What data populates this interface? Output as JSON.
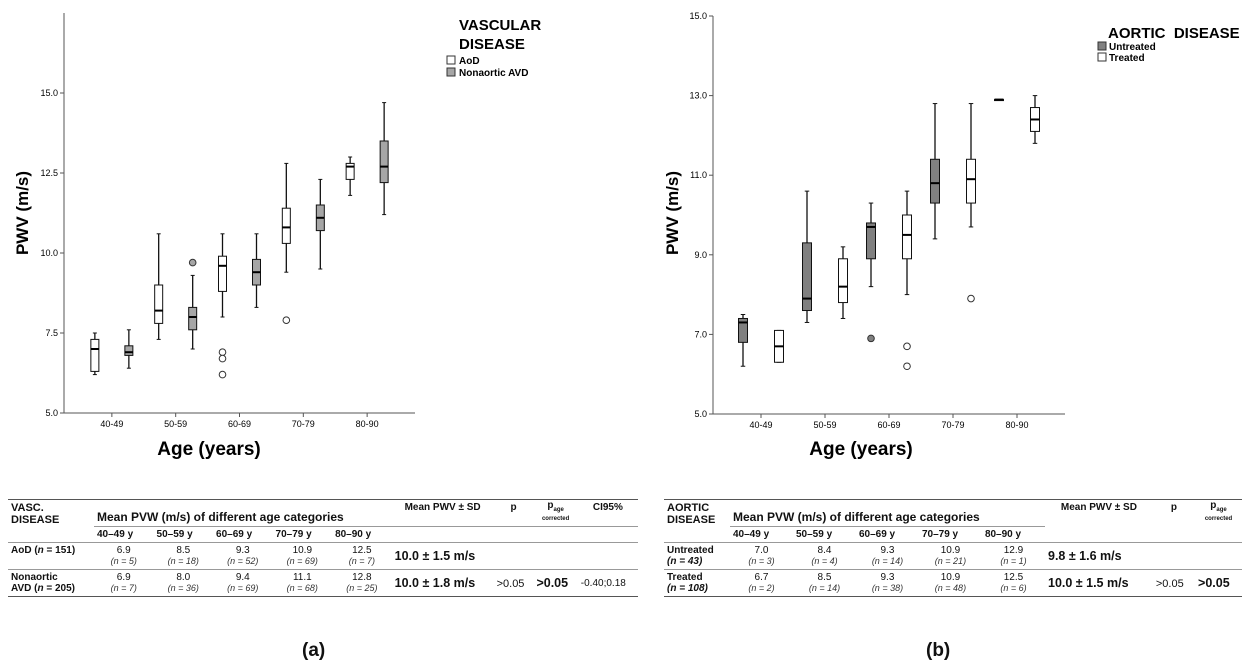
{
  "chart_data": [
    {
      "type": "boxplot",
      "panel": "(a)",
      "xlabel": "Age (years)",
      "ylabel": "PWV (m/s)",
      "ylim": [
        5.0,
        17.5
      ],
      "yticks": [
        "5.0",
        "7.5",
        "10.0",
        "12.5",
        "15.0"
      ],
      "categories": [
        "40-49",
        "50-59",
        "60-69",
        "70-79",
        "80-90"
      ],
      "legend_title": "VASCULAR DISEASE",
      "legend_title_lines": [
        "VASCULAR",
        "DISEASE"
      ],
      "series": [
        {
          "name": "AoD",
          "color": "#ffffff",
          "boxes": [
            {
              "min": 6.2,
              "q1": 6.3,
              "median": 7.0,
              "q3": 7.3,
              "max": 7.5,
              "outliers": []
            },
            {
              "min": 7.3,
              "q1": 7.8,
              "median": 8.2,
              "q3": 9.0,
              "max": 10.6,
              "outliers": []
            },
            {
              "min": 8.0,
              "q1": 8.8,
              "median": 9.6,
              "q3": 9.9,
              "max": 10.6,
              "outliers": [
                6.9,
                6.7,
                6.2
              ]
            },
            {
              "min": 9.4,
              "q1": 10.3,
              "median": 10.8,
              "q3": 11.4,
              "max": 12.8,
              "outliers": [
                7.9
              ]
            },
            {
              "min": 11.8,
              "q1": 12.3,
              "median": 12.7,
              "q3": 12.8,
              "max": 13.0,
              "outliers": []
            }
          ]
        },
        {
          "name": "Nonaortic AVD",
          "color": "#a6a6a6",
          "boxes": [
            {
              "min": 6.4,
              "q1": 6.8,
              "median": 6.9,
              "q3": 7.1,
              "max": 7.6,
              "outliers": []
            },
            {
              "min": 7.0,
              "q1": 7.6,
              "median": 8.0,
              "q3": 8.3,
              "max": 9.3,
              "outliers": [
                9.7
              ]
            },
            {
              "min": 8.3,
              "q1": 9.0,
              "median": 9.4,
              "q3": 9.8,
              "max": 10.6,
              "outliers": []
            },
            {
              "min": 9.5,
              "q1": 10.7,
              "median": 11.1,
              "q3": 11.5,
              "max": 12.3,
              "outliers": []
            },
            {
              "min": 11.2,
              "q1": 12.2,
              "median": 12.7,
              "q3": 13.5,
              "max": 14.7,
              "outliers": []
            }
          ]
        }
      ]
    },
    {
      "type": "boxplot",
      "panel": "(b)",
      "xlabel": "Age (years)",
      "ylabel": "PWV (m/s)",
      "ylim": [
        5.0,
        15.0
      ],
      "yticks": [
        "5.0",
        "7.0",
        "9.0",
        "11.0",
        "13.0",
        "15.0"
      ],
      "categories": [
        "40-49",
        "50-59",
        "60-69",
        "70-79",
        "80-90"
      ],
      "legend_title": "AORTIC DISEASE",
      "legend_title_lines": [
        "AORTIC  DISEASE"
      ],
      "series": [
        {
          "name": "Untreated",
          "color": "#808080",
          "boxes": [
            {
              "min": 6.2,
              "q1": 6.8,
              "median": 7.3,
              "q3": 7.4,
              "max": 7.5,
              "outliers": []
            },
            {
              "min": 7.3,
              "q1": 7.6,
              "median": 7.9,
              "q3": 9.3,
              "max": 10.6,
              "outliers": []
            },
            {
              "min": 8.2,
              "q1": 8.9,
              "median": 9.7,
              "q3": 9.8,
              "max": 10.3,
              "outliers": [
                6.9
              ]
            },
            {
              "min": 9.4,
              "q1": 10.3,
              "median": 10.8,
              "q3": 11.4,
              "max": 12.8,
              "outliers": []
            },
            {
              "min": 12.9,
              "q1": 12.9,
              "median": 12.9,
              "q3": 12.9,
              "max": 12.9,
              "outliers": []
            }
          ]
        },
        {
          "name": "Treated",
          "color": "#ffffff",
          "boxes": [
            {
              "min": 6.3,
              "q1": 6.3,
              "median": 6.7,
              "q3": 7.1,
              "max": 7.1,
              "outliers": []
            },
            {
              "min": 7.4,
              "q1": 7.8,
              "median": 8.2,
              "q3": 8.9,
              "max": 9.2,
              "outliers": []
            },
            {
              "min": 8.0,
              "q1": 8.9,
              "median": 9.5,
              "q3": 10.0,
              "max": 10.6,
              "outliers": [
                6.7,
                6.2
              ]
            },
            {
              "min": 9.7,
              "q1": 10.3,
              "median": 10.9,
              "q3": 11.4,
              "max": 12.8,
              "outliers": [
                7.9
              ]
            },
            {
              "min": 11.8,
              "q1": 12.1,
              "median": 12.4,
              "q3": 12.7,
              "max": 13.0,
              "outliers": []
            }
          ]
        }
      ]
    }
  ],
  "tables": {
    "a": {
      "group_header_line1": "VASC.",
      "group_header_line2": "DISEASE",
      "span_header": "Mean PVW (m/s) of different age categories",
      "mean_header": "Mean PWV ± SD",
      "p_header": "p",
      "p_age_main": "p",
      "p_age_sub": "age",
      "p_age_sub2": "corrected",
      "ci_header": "CI95%",
      "age_headers": [
        "40–49 y",
        "50–59 y",
        "60–69 y",
        "70–79 y",
        "80–90 y"
      ],
      "rows": [
        {
          "label_line1": "AoD (",
          "n_italic": "n",
          "label_rest": " = 151)",
          "label_line2": "",
          "cells": [
            {
              "v": "6.9",
              "n": "(n = 5)"
            },
            {
              "v": "8.5",
              "n": "(n = 18)"
            },
            {
              "v": "9.3",
              "n": "(n = 52)"
            },
            {
              "v": "10.9",
              "n": "(n = 69)"
            },
            {
              "v": "12.5",
              "n": "(n = 7)"
            }
          ],
          "mean": "10.0 ± 1.5 m/s",
          "p": "",
          "p_age": "",
          "ci": ""
        },
        {
          "label_line1": "Nonaortic",
          "n_italic": "n",
          "label_rest": " = 205)",
          "label_line2": "AVD (",
          "cells": [
            {
              "v": "6.9",
              "n": "(n = 7)"
            },
            {
              "v": "8.0",
              "n": "(n = 36)"
            },
            {
              "v": "9.4",
              "n": "(n = 69)"
            },
            {
              "v": "11.1",
              "n": "(n = 68)"
            },
            {
              "v": "12.8",
              "n": "(n = 25)"
            }
          ],
          "mean": "10.0 ± 1.8 m/s",
          "p": ">0.05",
          "p_age": ">0.05",
          "ci": "-0.40;0.18"
        }
      ]
    },
    "b": {
      "group_header_line1": "AORTIC",
      "group_header_line2": "DISEASE",
      "span_header": "Mean PVW (m/s) of different age categories",
      "mean_header": "Mean PWV ± SD",
      "p_header": "p",
      "p_age_main": "p",
      "p_age_sub": "age",
      "p_age_sub2": "corrected",
      "age_headers": [
        "40–49 y",
        "50–59 y",
        "60–69 y",
        "70–79 y",
        "80–90 y"
      ],
      "rows": [
        {
          "label_line1": "Untreated",
          "label_line2": "(n = 43)",
          "cells": [
            {
              "v": "7.0",
              "n": "(n = 3)"
            },
            {
              "v": "8.4",
              "n": "(n = 4)"
            },
            {
              "v": "9.3",
              "n": "(n = 14)"
            },
            {
              "v": "10.9",
              "n": "(n = 21)"
            },
            {
              "v": "12.9",
              "n": "(n = 1)"
            }
          ],
          "mean": "9.8 ± 1.6 m/s",
          "p": "",
          "p_age": ""
        },
        {
          "label_line1": "Treated",
          "label_line2": "(n = 108)",
          "cells": [
            {
              "v": "6.7",
              "n": "(n = 2)"
            },
            {
              "v": "8.5",
              "n": "(n = 14)"
            },
            {
              "v": "9.3",
              "n": "(n = 38)"
            },
            {
              "v": "10.9",
              "n": "(n = 48)"
            },
            {
              "v": "12.5",
              "n": "(n = 6)"
            }
          ],
          "mean": "10.0 ± 1.5 m/s",
          "p": ">0.05",
          "p_age": ">0.05"
        }
      ]
    }
  },
  "panel_labels": [
    "(a)",
    "(b)"
  ]
}
